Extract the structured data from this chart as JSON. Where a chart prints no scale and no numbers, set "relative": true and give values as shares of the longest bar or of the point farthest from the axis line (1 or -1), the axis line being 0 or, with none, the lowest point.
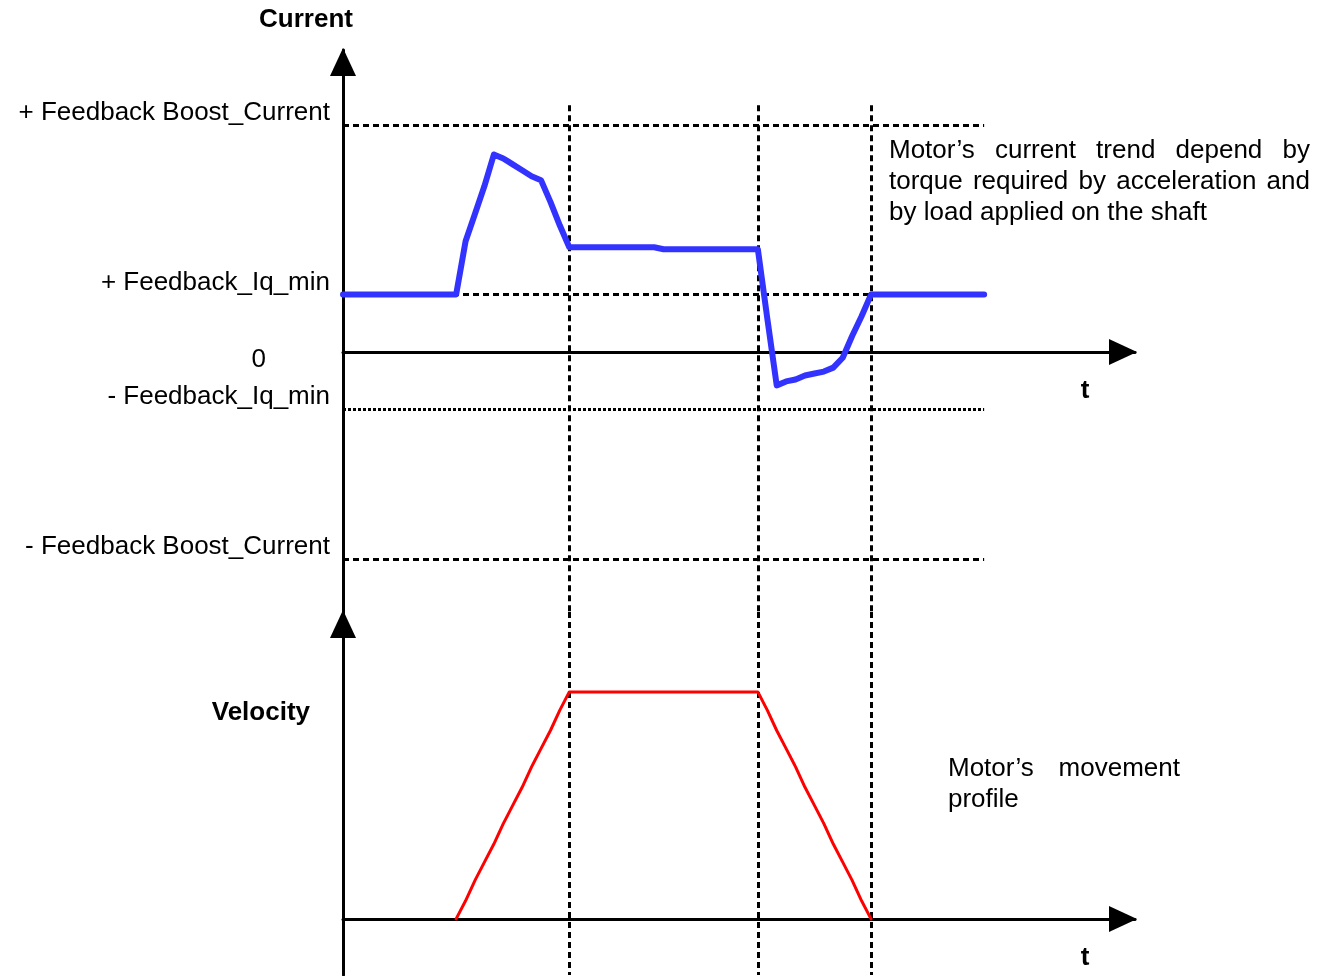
{
  "chart_data": [
    {
      "type": "line",
      "ylabel": "Current",
      "xlabel": "t",
      "relative": true,
      "tick_labels": false,
      "grid": "x",
      "color": "#3333ff",
      "categories": [
        null,
        null,
        null,
        null,
        null,
        null,
        null,
        null,
        null,
        null,
        null,
        null,
        null,
        null,
        null,
        null,
        null,
        null,
        null,
        null,
        null,
        null,
        null,
        null,
        null,
        null,
        null,
        null,
        null,
        null,
        null,
        null,
        null,
        null,
        null,
        null,
        null,
        null,
        null,
        null,
        null,
        null,
        null,
        null,
        null,
        null,
        null,
        null,
        null,
        null,
        null,
        null,
        null,
        null,
        null,
        null,
        null,
        null,
        null,
        null,
        null,
        null,
        null,
        null,
        null,
        null,
        null,
        null,
        null,
        null,
        null,
        null,
        null,
        null,
        null,
        null,
        null,
        null,
        null,
        null,
        null,
        null,
        null,
        null,
        null
      ],
      "values": [
        0.29,
        0.29,
        0.29,
        0.29,
        0.29,
        0.29,
        0.29,
        0.29,
        0.29,
        0.29,
        0.29,
        0.29,
        0.29,
        0.56,
        0.7,
        0.84,
        1,
        0.98,
        0.95,
        0.92,
        0.89,
        0.87,
        0.76,
        0.64,
        0.53,
        0.53,
        0.53,
        0.53,
        0.53,
        0.53,
        0.53,
        0.53,
        0.53,
        0.53,
        0.52,
        0.52,
        0.52,
        0.52,
        0.52,
        0.52,
        0.52,
        0.52,
        0.52,
        0.52,
        0.52,
        0.17,
        -0.17,
        -0.15,
        -0.14,
        -0.12,
        -0.11,
        -0.1,
        -0.08,
        -0.03,
        0.08,
        0.18,
        0.29,
        0.29,
        0.29,
        0.29,
        0.29,
        0.29,
        0.29,
        0.29,
        0.29,
        0.29,
        0.29,
        0.29,
        0.29,
        null,
        null,
        null,
        null,
        null,
        null,
        null,
        null,
        null,
        null,
        null,
        null,
        null,
        null,
        null,
        null
      ],
      "ref_lines": [
        {
          "axis": "y",
          "value": 1.15,
          "label": "+ Feedback Boost_Current",
          "color": "#000000",
          "line_style": "dashed"
        },
        {
          "axis": "y",
          "value": 0.29,
          "label": "+ Feedback_Iq_min",
          "color": "#000000",
          "line_style": "dashed"
        },
        {
          "axis": "y",
          "value": -0.29,
          "label": "- Feedback_Iq_min",
          "color": "#000000",
          "line_style": "dotted"
        },
        {
          "axis": "y",
          "value": -1.05,
          "label": "- Feedback Boost_Current",
          "color": "#000000",
          "line_style": "dashed"
        }
      ],
      "annotations": [
        "0",
        "Motor’s current trend depend by torque required by acceleration and by load applied on the shaft"
      ]
    },
    {
      "type": "line",
      "ylabel": "Velocity",
      "xlabel": "t",
      "relative": true,
      "tick_labels": false,
      "grid": "x",
      "color": "#ff0000",
      "categories": [
        null,
        null,
        null,
        null,
        null,
        null,
        null,
        null,
        null,
        null,
        null,
        null,
        null,
        null,
        null,
        null,
        null,
        null,
        null,
        null,
        null,
        null,
        null,
        null,
        null,
        null,
        null,
        null,
        null,
        null,
        null,
        null,
        null,
        null,
        null,
        null,
        null,
        null,
        null,
        null,
        null,
        null,
        null,
        null,
        null,
        null,
        null,
        null,
        null,
        null,
        null,
        null,
        null,
        null,
        null,
        null,
        null,
        null,
        null,
        null,
        null,
        null,
        null,
        null,
        null,
        null,
        null,
        null,
        null,
        null,
        null,
        null,
        null,
        null,
        null,
        null,
        null,
        null,
        null,
        null,
        null,
        null,
        null,
        null,
        null
      ],
      "values": [
        null,
        null,
        null,
        null,
        null,
        null,
        null,
        null,
        null,
        null,
        null,
        null,
        0,
        0.08,
        0.17,
        0.25,
        0.33,
        0.42,
        0.5,
        0.58,
        0.67,
        0.75,
        0.83,
        0.92,
        1,
        1,
        1,
        1,
        1,
        1,
        1,
        1,
        1,
        1,
        1,
        1,
        1,
        1,
        1,
        1,
        1,
        1,
        1,
        1,
        1,
        0.92,
        0.83,
        0.75,
        0.67,
        0.58,
        0.5,
        0.42,
        0.33,
        0.25,
        0.17,
        0.08,
        0,
        null,
        null,
        null,
        null,
        null,
        null,
        null,
        null,
        null,
        null,
        null,
        null,
        null,
        null,
        null,
        null,
        null,
        null,
        null,
        null,
        null,
        null,
        null,
        null,
        null,
        null,
        null,
        null
      ],
      "annotations": [
        "Motor’s movement profile"
      ]
    }
  ]
}
